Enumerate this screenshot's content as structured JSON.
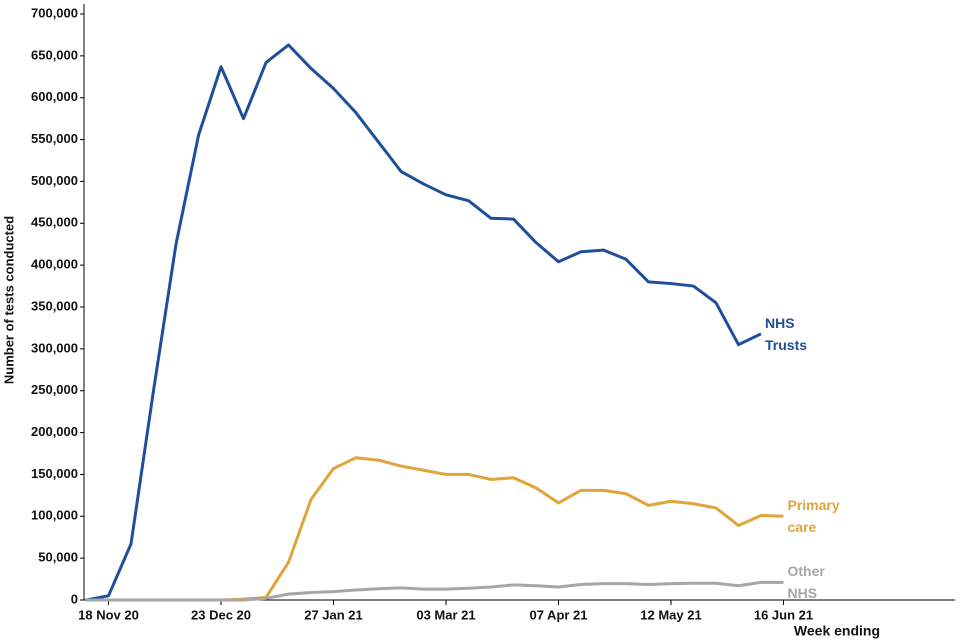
{
  "chart_data": {
    "type": "line",
    "y_label": "Number of tests conducted",
    "x_label": "Week ending",
    "categories": [
      null,
      "18 Nov 20",
      null,
      null,
      null,
      null,
      "23 Dec 20",
      null,
      null,
      null,
      null,
      "27 Jan 21",
      null,
      null,
      null,
      null,
      "03 Mar 21",
      null,
      null,
      null,
      null,
      "07 Apr 21",
      null,
      null,
      null,
      null,
      "12 May 21",
      null,
      null,
      null,
      null,
      "16 Jun 21"
    ],
    "series": [
      {
        "name": "NHS Trusts",
        "color": "#1f4f9b",
        "values": [
          0,
          5000,
          67000,
          250000,
          425000,
          555000,
          637000,
          575000,
          642000,
          663000,
          635000,
          611000,
          582000,
          547000,
          512000,
          497000,
          484000,
          477000,
          456000,
          455000,
          427000,
          404000,
          416000,
          418000,
          407000,
          380000,
          378000,
          375000,
          355000,
          305000,
          318000,
          null
        ]
      },
      {
        "name": "Primary care",
        "color": "#e0a43a",
        "values": [
          0,
          0,
          0,
          0,
          0,
          0,
          0,
          1000,
          3000,
          45000,
          120000,
          157000,
          170000,
          167000,
          160000,
          155000,
          150000,
          150000,
          144000,
          146000,
          134000,
          116000,
          131000,
          131000,
          127000,
          113000,
          118000,
          115000,
          110000,
          89000,
          101000,
          100000
        ]
      },
      {
        "name": "Other NHS",
        "color": "#a6a6a6",
        "values": [
          0,
          0,
          0,
          0,
          0,
          0,
          0,
          0,
          2000,
          7000,
          9000,
          10000,
          12000,
          13500,
          14500,
          13000,
          13000,
          14000,
          15500,
          18000,
          17000,
          15500,
          18500,
          19500,
          19500,
          18500,
          19500,
          20000,
          20000,
          17000,
          21000,
          21000
        ]
      }
    ],
    "ylim": [
      0,
      700000
    ],
    "yticks": [
      0,
      {
        "value": 50000,
        "label": "50,000"
      },
      {
        "value": 100000,
        "label": "100,000"
      },
      {
        "value": 150000,
        "label": "150,000"
      },
      {
        "value": 200000,
        "label": "200,000"
      },
      {
        "value": 250000,
        "label": "250,000"
      },
      {
        "value": 300000,
        "label": "300,000"
      },
      {
        "value": 350000,
        "label": "350,000"
      },
      {
        "value": 400000,
        "label": "400,000"
      },
      {
        "value": 450000,
        "label": "450,000"
      },
      {
        "value": 500000,
        "label": "500,000"
      },
      {
        "value": 550000,
        "label": "550,000"
      },
      {
        "value": 600000,
        "label": "600,000"
      },
      {
        "value": 650000,
        "label": "650,000"
      },
      {
        "value": 700000,
        "label": "700,000"
      }
    ]
  }
}
